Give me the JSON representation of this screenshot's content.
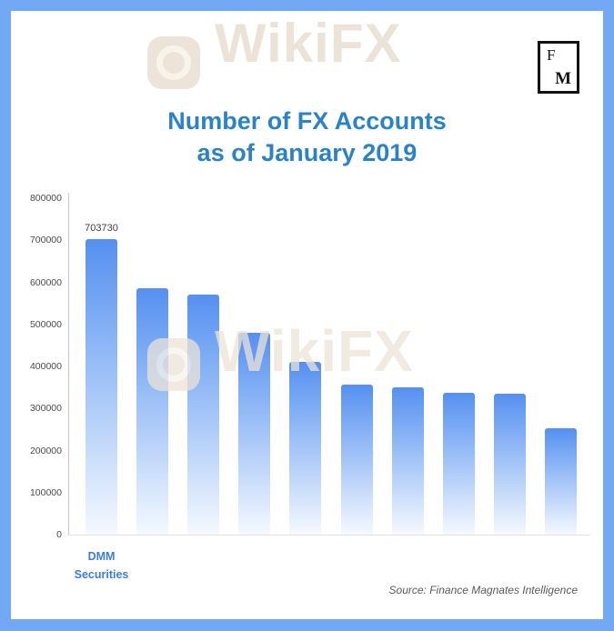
{
  "watermark": {
    "top_text": "WikiFX",
    "middle_text": "WikiFX"
  },
  "logo": {
    "letter_top": "F",
    "letter_bottom": "M"
  },
  "title": {
    "line1": "Number of FX Accounts",
    "line2": "as of January 2019"
  },
  "chart_data": {
    "type": "bar",
    "title": "Number of FX Accounts as of January 2019",
    "categories": [
      "DMM Securities",
      "",
      "",
      "",
      "",
      "",
      "",
      "",
      "",
      ""
    ],
    "values": [
      703730,
      585000,
      570000,
      480000,
      410000,
      357000,
      350000,
      337000,
      336000,
      253000
    ],
    "bar_value_labels": [
      "703730",
      "",
      "",
      "",
      "",
      "",
      "",
      "",
      "",
      ""
    ],
    "ylim": [
      0,
      800000
    ],
    "yticks": [
      0,
      100000,
      200000,
      300000,
      400000,
      500000,
      600000,
      700000,
      800000
    ],
    "grid": false,
    "legend": false,
    "bar_color_top": "#5590f0",
    "bar_color_mid": "#9cc0f7",
    "bar_color_bottom": "#f5f9ff"
  },
  "footer": {
    "source": "Source: Finance Magnates Intelligence"
  },
  "colors": {
    "frame": "#73a8f4",
    "title": "#2b82c5",
    "category_label": "#3c7edb",
    "watermark": "#ebe3d6"
  }
}
